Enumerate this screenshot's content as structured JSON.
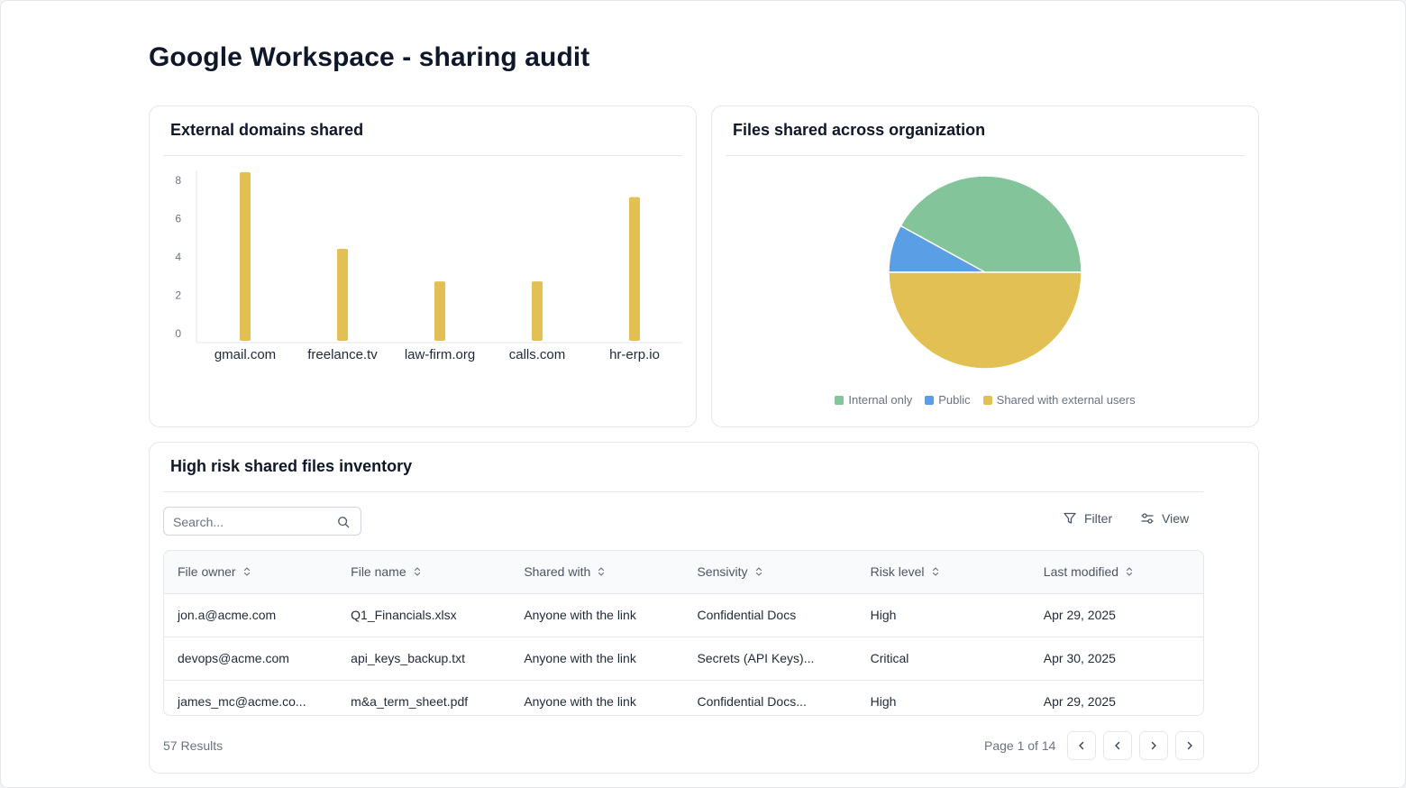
{
  "page": {
    "title": "Google Workspace - sharing audit"
  },
  "bar_card": {
    "title": "External domains shared"
  },
  "pie_card": {
    "title": "Files shared across organization"
  },
  "chart_data": [
    {
      "type": "bar",
      "categories": [
        "gmail.com",
        "freelance.tv",
        "law-firm.org",
        "calls.com",
        "hr-erp.io"
      ],
      "values": [
        8.8,
        4.8,
        3.1,
        3.1,
        7.5
      ],
      "ylim": [
        0,
        8.8
      ],
      "yticks": [
        0,
        2,
        4,
        6,
        8
      ],
      "color": "#e2c054",
      "grid": false
    },
    {
      "type": "pie",
      "labels": [
        "Internal only",
        "Public",
        "Shared with external users"
      ],
      "values": [
        42,
        8,
        50
      ],
      "colors": [
        "#84c49b",
        "#5a9fe6",
        "#e2c054"
      ],
      "legend": "bottom"
    }
  ],
  "table_card": {
    "title": "High risk shared files inventory",
    "search_placeholder": "Search...",
    "filter_label": "Filter",
    "view_label": "View",
    "columns": [
      "File owner",
      "File name",
      "Shared with",
      "Sensivity",
      "Risk level",
      "Last modified"
    ],
    "rows": [
      [
        "jon.a@acme.com",
        "Q1_Financials.xlsx",
        "Anyone with the link",
        "Confidential Docs",
        "High",
        "Apr 29, 2025"
      ],
      [
        "devops@acme.com",
        "api_keys_backup.txt",
        "Anyone with the link",
        "Secrets (API Keys)...",
        "Critical",
        "Apr 30, 2025"
      ],
      [
        "james_mc@acme.co...",
        "m&a_term_sheet.pdf",
        "Anyone with the link",
        "Confidential Docs...",
        "High",
        "Apr 29, 2025"
      ]
    ],
    "results": "57 Results",
    "page_info": "Page 1 of 14"
  },
  "icons": {
    "search": "search-icon",
    "filter": "filter-icon",
    "view": "sliders-icon",
    "sort": "sort-icon",
    "first": "chevron-double-left-icon",
    "prev": "chevron-left-icon",
    "next": "chevron-right-icon",
    "last": "chevron-double-right-icon"
  }
}
